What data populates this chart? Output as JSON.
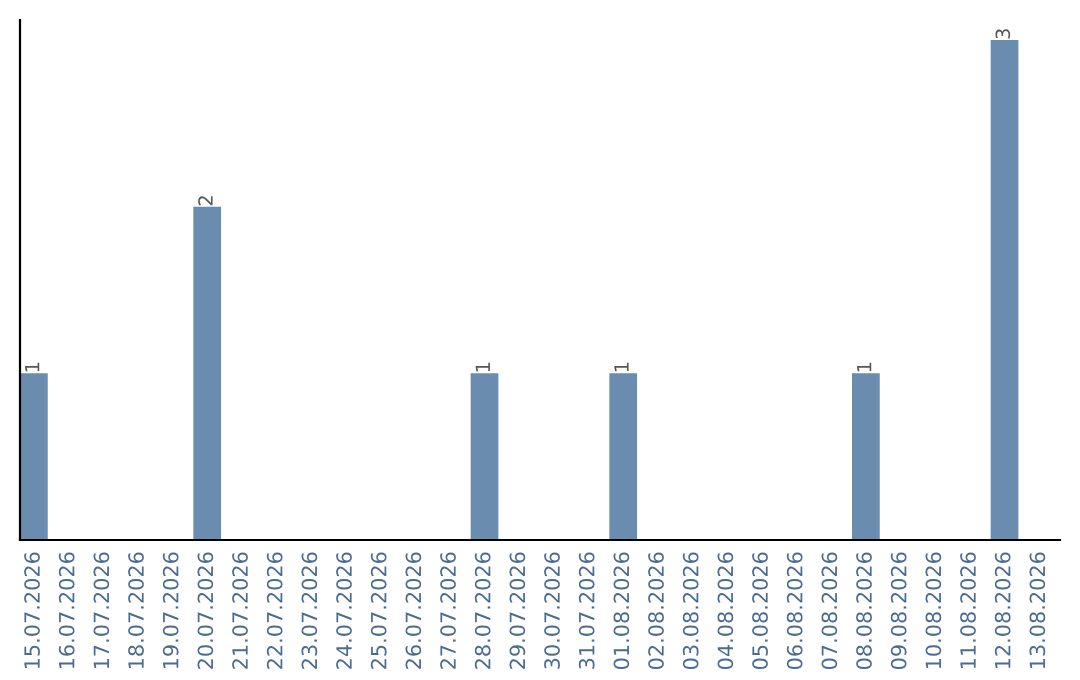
{
  "chart_data": {
    "type": "bar",
    "categories": [
      "15.07.2026",
      "16.07.2026",
      "17.07.2026",
      "18.07.2026",
      "19.07.2026",
      "20.07.2026",
      "21.07.2026",
      "22.07.2026",
      "23.07.2026",
      "24.07.2026",
      "25.07.2026",
      "26.07.2026",
      "27.07.2026",
      "28.07.2026",
      "29.07.2026",
      "30.07.2026",
      "31.07.2026",
      "01.08.2026",
      "02.08.2026",
      "03.08.2026",
      "04.08.2026",
      "05.08.2026",
      "06.08.2026",
      "07.08.2026",
      "08.08.2026",
      "09.08.2026",
      "10.08.2026",
      "11.08.2026",
      "12.08.2026",
      "13.08.2026"
    ],
    "values": [
      1,
      0,
      0,
      0,
      0,
      2,
      0,
      0,
      0,
      0,
      0,
      0,
      0,
      1,
      0,
      0,
      0,
      1,
      0,
      0,
      0,
      0,
      0,
      0,
      1,
      0,
      0,
      0,
      3,
      0
    ],
    "value_labels": [
      "1",
      null,
      null,
      null,
      null,
      "2",
      null,
      null,
      null,
      null,
      null,
      null,
      null,
      "1",
      null,
      null,
      null,
      "1",
      null,
      null,
      null,
      null,
      null,
      null,
      "1",
      null,
      null,
      null,
      "3",
      null
    ],
    "color": "#6a8caf",
    "grid": false,
    "legend": false
  }
}
